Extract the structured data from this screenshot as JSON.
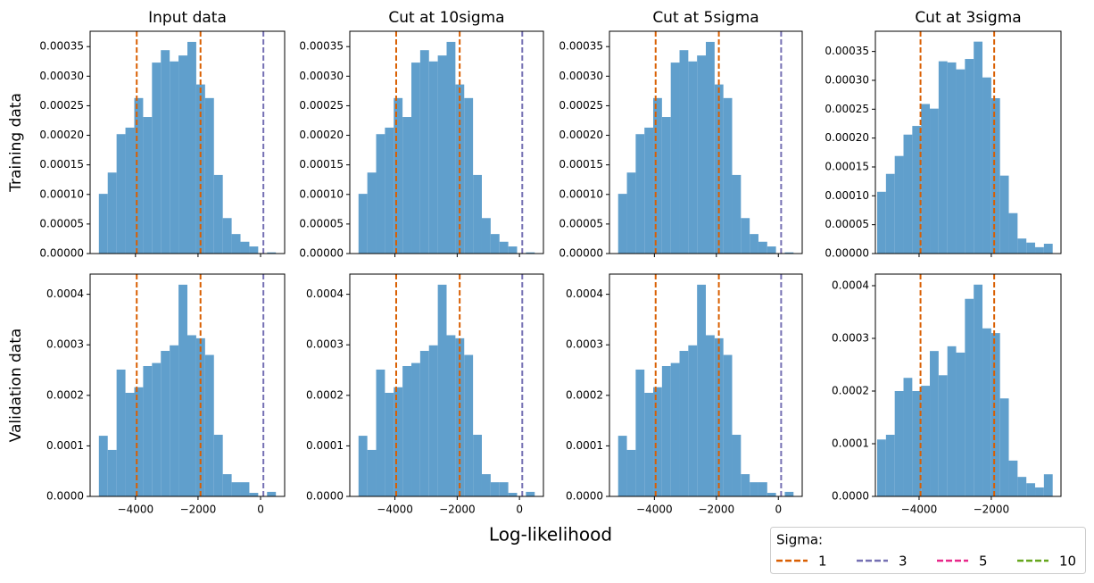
{
  "figure": {
    "xlabel": "Log-likelihood",
    "legend": {
      "title": "Sigma:",
      "loc": "lower right",
      "entries": [
        {
          "name": "1",
          "color": "#d95f02"
        },
        {
          "name": "3",
          "color": "#7570b3"
        },
        {
          "name": "5",
          "color": "#e7298a"
        },
        {
          "name": "10",
          "color": "#66a61e"
        }
      ]
    }
  },
  "chart_data": [
    {
      "type": "histogram",
      "title": "Input data",
      "ylabel": "Training data",
      "color": "#609fcc",
      "bins": [
        -5170,
        -4887,
        -4604,
        -4321,
        -4038,
        -3755,
        -3472,
        -3189,
        -2906,
        -2623,
        -2340,
        -2057,
        -1774,
        -1491,
        -1208,
        -925,
        -642,
        -359,
        -76,
        207,
        490
      ],
      "values": [
        0.000101,
        0.000137,
        0.000202,
        0.000213,
        0.000263,
        0.000231,
        0.000323,
        0.000344,
        0.000325,
        0.000335,
        0.000358,
        0.000286,
        0.000263,
        0.000133,
        6e-05,
        3.3e-05,
        2e-05,
        1.2e-05,
        0,
        2e-06
      ],
      "vlines": [
        {
          "x": -3960,
          "color": "#d95f02"
        },
        {
          "x": -1920,
          "color": "#d95f02"
        },
        {
          "x": 90,
          "color": "#7570b3"
        }
      ],
      "xlim": [
        -5450,
        770
      ],
      "xticks": [
        -4000,
        -2000,
        0
      ],
      "ylim": [
        0,
        0.000376
      ],
      "yticks": [
        {
          "value": 0,
          "label": "0.00000"
        },
        {
          "value": 5e-05,
          "label": "0.00005"
        },
        {
          "value": 0.0001,
          "label": "0.00010"
        },
        {
          "value": 0.00015,
          "label": "0.00015"
        },
        {
          "value": 0.0002,
          "label": "0.00020"
        },
        {
          "value": 0.00025,
          "label": "0.00025"
        },
        {
          "value": 0.0003,
          "label": "0.00030"
        },
        {
          "value": 0.00035,
          "label": "0.00035"
        }
      ]
    },
    {
      "type": "histogram",
      "title": "Cut at 10sigma",
      "color": "#609fcc",
      "bins": [
        -5170,
        -4887,
        -4604,
        -4321,
        -4038,
        -3755,
        -3472,
        -3189,
        -2906,
        -2623,
        -2340,
        -2057,
        -1774,
        -1491,
        -1208,
        -925,
        -642,
        -359,
        -76,
        207,
        490
      ],
      "values": [
        0.000101,
        0.000137,
        0.000202,
        0.000213,
        0.000263,
        0.000231,
        0.000323,
        0.000344,
        0.000325,
        0.000335,
        0.000358,
        0.000286,
        0.000263,
        0.000133,
        6e-05,
        3.3e-05,
        2e-05,
        1.2e-05,
        0,
        2e-06
      ],
      "vlines": [
        {
          "x": -3960,
          "color": "#d95f02"
        },
        {
          "x": -1920,
          "color": "#d95f02"
        },
        {
          "x": 90,
          "color": "#7570b3"
        }
      ],
      "xlim": [
        -5450,
        770
      ],
      "xticks": [
        -4000,
        -2000,
        0
      ],
      "ylim": [
        0,
        0.000376
      ],
      "yticks": [
        {
          "value": 0,
          "label": "0.00000"
        },
        {
          "value": 5e-05,
          "label": "0.00005"
        },
        {
          "value": 0.0001,
          "label": "0.00010"
        },
        {
          "value": 0.00015,
          "label": "0.00015"
        },
        {
          "value": 0.0002,
          "label": "0.00020"
        },
        {
          "value": 0.00025,
          "label": "0.00025"
        },
        {
          "value": 0.0003,
          "label": "0.00030"
        },
        {
          "value": 0.00035,
          "label": "0.00035"
        }
      ]
    },
    {
      "type": "histogram",
      "title": "Cut at 5sigma",
      "color": "#609fcc",
      "bins": [
        -5170,
        -4887,
        -4604,
        -4321,
        -4038,
        -3755,
        -3472,
        -3189,
        -2906,
        -2623,
        -2340,
        -2057,
        -1774,
        -1491,
        -1208,
        -925,
        -642,
        -359,
        -76,
        207,
        490
      ],
      "values": [
        0.000101,
        0.000137,
        0.000202,
        0.000213,
        0.000263,
        0.000231,
        0.000323,
        0.000344,
        0.000325,
        0.000335,
        0.000358,
        0.000286,
        0.000263,
        0.000133,
        6e-05,
        3.3e-05,
        2e-05,
        1.2e-05,
        0,
        2e-06
      ],
      "vlines": [
        {
          "x": -3960,
          "color": "#d95f02"
        },
        {
          "x": -1920,
          "color": "#d95f02"
        },
        {
          "x": 90,
          "color": "#7570b3"
        }
      ],
      "xlim": [
        -5450,
        770
      ],
      "xticks": [
        -4000,
        -2000,
        0
      ],
      "ylim": [
        0,
        0.000376
      ],
      "yticks": [
        {
          "value": 0,
          "label": "0.00000"
        },
        {
          "value": 5e-05,
          "label": "0.00005"
        },
        {
          "value": 0.0001,
          "label": "0.00010"
        },
        {
          "value": 0.00015,
          "label": "0.00015"
        },
        {
          "value": 0.0002,
          "label": "0.00020"
        },
        {
          "value": 0.00025,
          "label": "0.00025"
        },
        {
          "value": 0.0003,
          "label": "0.00030"
        },
        {
          "value": 0.00035,
          "label": "0.00035"
        }
      ]
    },
    {
      "type": "histogram",
      "title": "Cut at 3sigma",
      "color": "#609fcc",
      "bins": [
        -5160,
        -4917,
        -4674,
        -4431,
        -4188,
        -3945,
        -3702,
        -3459,
        -3216,
        -2973,
        -2730,
        -2487,
        -2244,
        -2001,
        -1758,
        -1515,
        -1272,
        -1029,
        -786,
        -543,
        -300
      ],
      "values": [
        0.000107,
        0.000138,
        0.000169,
        0.000206,
        0.000221,
        0.000259,
        0.000251,
        0.000333,
        0.000331,
        0.000319,
        0.000337,
        0.000367,
        0.000305,
        0.000269,
        0.000135,
        7e-05,
        2.6e-05,
        1.9e-05,
        1.1e-05,
        1.7e-05
      ],
      "vlines": [
        {
          "x": -3960,
          "color": "#d95f02"
        },
        {
          "x": -1920,
          "color": "#d95f02"
        }
      ],
      "xlim": [
        -5210,
        -70
      ],
      "xticks": [
        -4000,
        -2000
      ],
      "ylim": [
        0,
        0.000385
      ],
      "yticks": [
        {
          "value": 0,
          "label": "0.00000"
        },
        {
          "value": 5e-05,
          "label": "0.00005"
        },
        {
          "value": 0.0001,
          "label": "0.00010"
        },
        {
          "value": 0.00015,
          "label": "0.00015"
        },
        {
          "value": 0.0002,
          "label": "0.00020"
        },
        {
          "value": 0.00025,
          "label": "0.00025"
        },
        {
          "value": 0.0003,
          "label": "0.00030"
        },
        {
          "value": 0.00035,
          "label": "0.00035"
        }
      ]
    },
    {
      "type": "histogram",
      "ylabel": "Validation data",
      "color": "#609fcc",
      "bins": [
        -5170,
        -4887,
        -4604,
        -4321,
        -4038,
        -3755,
        -3472,
        -3189,
        -2906,
        -2623,
        -2340,
        -2057,
        -1774,
        -1491,
        -1208,
        -925,
        -642,
        -359,
        -76,
        207,
        490
      ],
      "values": [
        0.00012,
        9.2e-05,
        0.000251,
        0.000205,
        0.000216,
        0.000258,
        0.000264,
        0.000288,
        0.000299,
        0.000419,
        0.000319,
        0.000313,
        0.00028,
        0.000122,
        4.4e-05,
        2.8e-05,
        2.8e-05,
        7e-06,
        0,
        9e-06
      ],
      "vlines": [
        {
          "x": -3960,
          "color": "#d95f02"
        },
        {
          "x": -1920,
          "color": "#d95f02"
        },
        {
          "x": 90,
          "color": "#7570b3"
        }
      ],
      "xlim": [
        -5450,
        770
      ],
      "xticks": [
        {
          "value": -4000,
          "label": "−4000"
        },
        {
          "value": -2000,
          "label": "−2000"
        },
        0
      ],
      "ylim": [
        0,
        0.00044
      ],
      "yticks": [
        {
          "value": 0,
          "label": "0.0000"
        },
        {
          "value": 0.0001,
          "label": "0.0001"
        },
        {
          "value": 0.0002,
          "label": "0.0002"
        },
        {
          "value": 0.0003,
          "label": "0.0003"
        },
        {
          "value": 0.0004,
          "label": "0.0004"
        }
      ]
    },
    {
      "type": "histogram",
      "color": "#609fcc",
      "bins": [
        -5170,
        -4887,
        -4604,
        -4321,
        -4038,
        -3755,
        -3472,
        -3189,
        -2906,
        -2623,
        -2340,
        -2057,
        -1774,
        -1491,
        -1208,
        -925,
        -642,
        -359,
        -76,
        207,
        490
      ],
      "values": [
        0.00012,
        9.2e-05,
        0.000251,
        0.000205,
        0.000216,
        0.000258,
        0.000264,
        0.000288,
        0.000299,
        0.000419,
        0.000319,
        0.000313,
        0.00028,
        0.000122,
        4.4e-05,
        2.8e-05,
        2.8e-05,
        7e-06,
        0,
        9e-06
      ],
      "vlines": [
        {
          "x": -3960,
          "color": "#d95f02"
        },
        {
          "x": -1920,
          "color": "#d95f02"
        },
        {
          "x": 90,
          "color": "#7570b3"
        }
      ],
      "xlim": [
        -5450,
        770
      ],
      "xticks": [
        {
          "value": -4000,
          "label": "−4000"
        },
        {
          "value": -2000,
          "label": "−2000"
        },
        0
      ],
      "ylim": [
        0,
        0.00044
      ],
      "yticks": [
        {
          "value": 0,
          "label": "0.0000"
        },
        {
          "value": 0.0001,
          "label": "0.0001"
        },
        {
          "value": 0.0002,
          "label": "0.0002"
        },
        {
          "value": 0.0003,
          "label": "0.0003"
        },
        {
          "value": 0.0004,
          "label": "0.0004"
        }
      ]
    },
    {
      "type": "histogram",
      "color": "#609fcc",
      "bins": [
        -5170,
        -4887,
        -4604,
        -4321,
        -4038,
        -3755,
        -3472,
        -3189,
        -2906,
        -2623,
        -2340,
        -2057,
        -1774,
        -1491,
        -1208,
        -925,
        -642,
        -359,
        -76,
        207,
        490
      ],
      "values": [
        0.00012,
        9.2e-05,
        0.000251,
        0.000205,
        0.000216,
        0.000258,
        0.000264,
        0.000288,
        0.000299,
        0.000419,
        0.000319,
        0.000313,
        0.00028,
        0.000122,
        4.4e-05,
        2.8e-05,
        2.8e-05,
        7e-06,
        0,
        9e-06
      ],
      "vlines": [
        {
          "x": -3960,
          "color": "#d95f02"
        },
        {
          "x": -1920,
          "color": "#d95f02"
        },
        {
          "x": 90,
          "color": "#7570b3"
        }
      ],
      "xlim": [
        -5450,
        770
      ],
      "xticks": [
        {
          "value": -4000,
          "label": "−4000"
        },
        {
          "value": -2000,
          "label": "−2000"
        },
        0
      ],
      "ylim": [
        0,
        0.00044
      ],
      "yticks": [
        {
          "value": 0,
          "label": "0.0000"
        },
        {
          "value": 0.0001,
          "label": "0.0001"
        },
        {
          "value": 0.0002,
          "label": "0.0002"
        },
        {
          "value": 0.0003,
          "label": "0.0003"
        },
        {
          "value": 0.0004,
          "label": "0.0004"
        }
      ]
    },
    {
      "type": "histogram",
      "color": "#609fcc",
      "bins": [
        -5160,
        -4917,
        -4674,
        -4431,
        -4188,
        -3945,
        -3702,
        -3459,
        -3216,
        -2973,
        -2730,
        -2487,
        -2244,
        -2001,
        -1758,
        -1515,
        -1272,
        -1029,
        -786,
        -543,
        -300
      ],
      "values": [
        0.000108,
        0.000117,
        0.0002,
        0.000225,
        0.0002,
        0.00021,
        0.000276,
        0.00023,
        0.000285,
        0.000273,
        0.000375,
        0.000402,
        0.000319,
        0.00031,
        0.000186,
        6.8e-05,
        3.7e-05,
        2.5e-05,
        1.7e-05,
        4.2e-05
      ],
      "vlines": [
        {
          "x": -3960,
          "color": "#d95f02"
        },
        {
          "x": -1920,
          "color": "#d95f02"
        }
      ],
      "xlim": [
        -5210,
        -70
      ],
      "xticks": [
        {
          "value": -4000,
          "label": "−4000"
        },
        {
          "value": -2000,
          "label": "−2000"
        }
      ],
      "ylim": [
        0,
        0.000422
      ],
      "yticks": [
        {
          "value": 0,
          "label": "0.0000"
        },
        {
          "value": 0.0001,
          "label": "0.0001"
        },
        {
          "value": 0.0002,
          "label": "0.0002"
        },
        {
          "value": 0.0003,
          "label": "0.0003"
        },
        {
          "value": 0.0004,
          "label": "0.0004"
        }
      ]
    }
  ]
}
